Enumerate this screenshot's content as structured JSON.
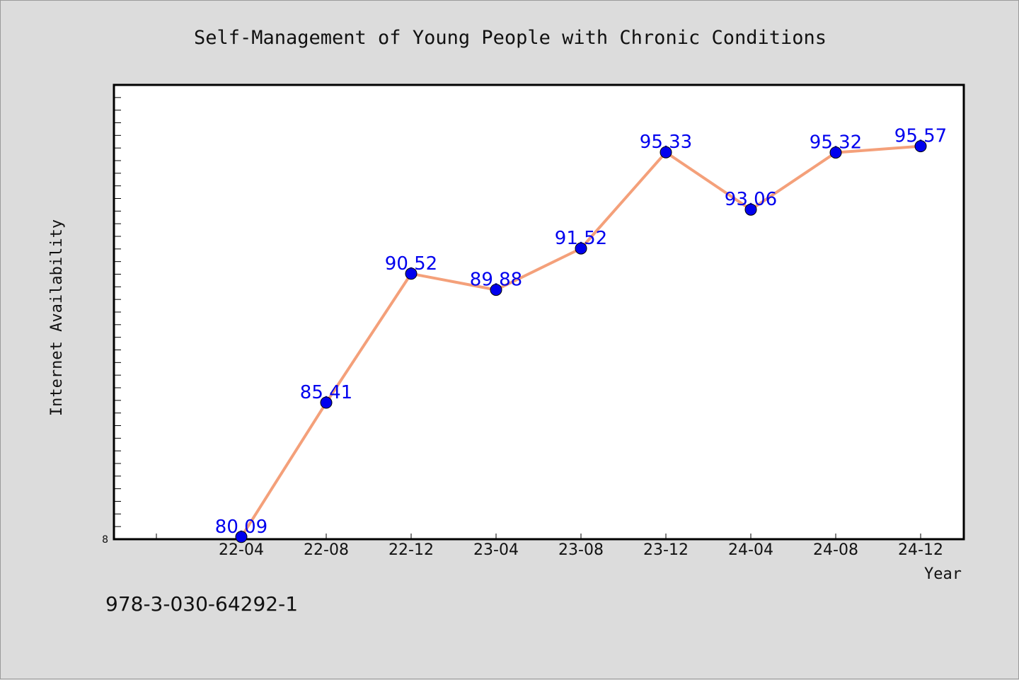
{
  "chart_data": {
    "type": "line",
    "title": "Self-Management of Young People with Chronic Conditions",
    "xlabel": "Year",
    "ylabel": "Internet Availability",
    "categories": [
      "22-04",
      "22-08",
      "22-12",
      "23-04",
      "23-08",
      "23-12",
      "24-04",
      "24-08",
      "24-12"
    ],
    "series": [
      {
        "values": [
          80.09,
          85.41,
          90.52,
          89.88,
          91.52,
          95.33,
          93.06,
          95.32,
          95.57
        ],
        "value_labels": [
          "80.09",
          "85.41",
          "90.52",
          "89.88",
          "91.52",
          "95.33",
          "93.06",
          "95.32",
          "95.57"
        ],
        "line_color": "#f4a07a",
        "marker_color": "#0000ee"
      }
    ],
    "y_tick_labels": [
      "8"
    ],
    "ylim": [
      80,
      98
    ],
    "grid": false,
    "legend": "none"
  },
  "footer": {
    "isbn": "978-3-030-64292-1"
  },
  "colors": {
    "background": "#dcdcdc",
    "plot_background": "#ffffff",
    "data_label": "#0000ee"
  }
}
